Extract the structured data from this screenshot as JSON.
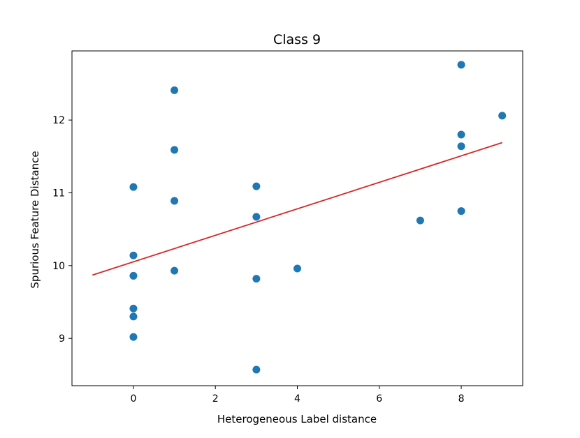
{
  "chart_data": {
    "type": "scatter",
    "title": "Class 9",
    "xlabel": "Heterogeneous Label distance",
    "ylabel": "Spurious Feature Distance",
    "xlim": [
      -1.5,
      9.5
    ],
    "ylim": [
      8.35,
      12.95
    ],
    "xticks": [
      0,
      2,
      4,
      6,
      8
    ],
    "yticks": [
      9,
      10,
      11,
      12
    ],
    "grid": false,
    "legend": "none",
    "point_color": "#1f77b4",
    "line_color": "#d62728",
    "points": [
      {
        "x": 0,
        "y": 11.08
      },
      {
        "x": 0,
        "y": 10.14
      },
      {
        "x": 0,
        "y": 9.86
      },
      {
        "x": 0,
        "y": 9.41
      },
      {
        "x": 0,
        "y": 9.3
      },
      {
        "x": 0,
        "y": 9.02
      },
      {
        "x": 1,
        "y": 12.41
      },
      {
        "x": 1,
        "y": 11.59
      },
      {
        "x": 1,
        "y": 10.89
      },
      {
        "x": 1,
        "y": 9.93
      },
      {
        "x": 3,
        "y": 11.09
      },
      {
        "x": 3,
        "y": 10.67
      },
      {
        "x": 3,
        "y": 9.82
      },
      {
        "x": 3,
        "y": 8.57
      },
      {
        "x": 4,
        "y": 9.96
      },
      {
        "x": 7,
        "y": 10.62
      },
      {
        "x": 8,
        "y": 12.76
      },
      {
        "x": 8,
        "y": 11.8
      },
      {
        "x": 8,
        "y": 11.64
      },
      {
        "x": 8,
        "y": 10.75
      },
      {
        "x": 9,
        "y": 12.06
      }
    ],
    "fit_line": {
      "x": [
        -1,
        9
      ],
      "y": [
        9.87,
        11.69
      ]
    }
  }
}
